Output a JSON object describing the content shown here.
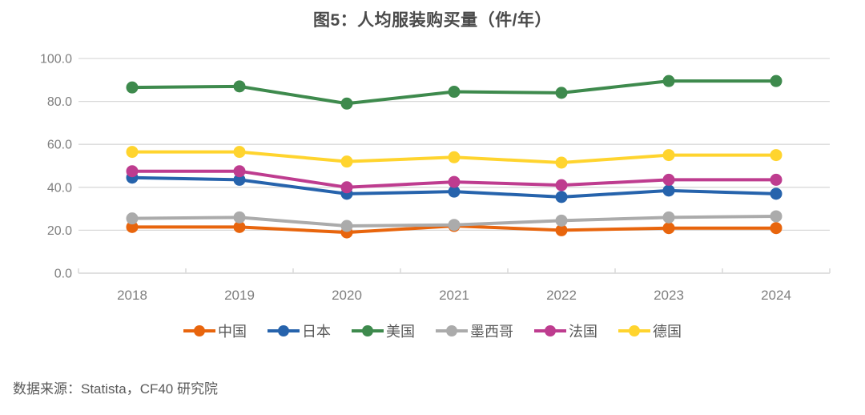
{
  "title": "图5：人均服装购买量（件/年）",
  "source": "数据来源：Statista，CF40 研究院",
  "chart_data": {
    "type": "line",
    "title": "图5：人均服装购买量（件/年）",
    "categories": [
      "2018",
      "2019",
      "2020",
      "2021",
      "2022",
      "2023",
      "2024"
    ],
    "series": [
      {
        "name": "中国",
        "color": "#E8650D",
        "values": [
          21.5,
          21.5,
          19.0,
          22.0,
          20.0,
          21.0,
          21.0
        ]
      },
      {
        "name": "日本",
        "color": "#2663AC",
        "values": [
          44.5,
          43.5,
          37.0,
          38.0,
          35.5,
          38.5,
          37.0
        ]
      },
      {
        "name": "美国",
        "color": "#3E8A4D",
        "values": [
          86.5,
          87.0,
          79.0,
          84.5,
          84.0,
          89.5,
          89.5
        ]
      },
      {
        "name": "墨西哥",
        "color": "#ABABAB",
        "values": [
          25.5,
          26.0,
          22.0,
          22.5,
          24.5,
          26.0,
          26.5
        ]
      },
      {
        "name": "法国",
        "color": "#BE3C8F",
        "values": [
          47.5,
          47.5,
          40.0,
          42.5,
          41.0,
          43.5,
          43.5
        ]
      },
      {
        "name": "德国",
        "color": "#FFD42E",
        "values": [
          56.5,
          56.5,
          52.0,
          54.0,
          51.5,
          55.0,
          55.0
        ]
      }
    ],
    "xlabel": "",
    "ylabel": "",
    "ylim": [
      0,
      100
    ],
    "ytick_step": 20,
    "ytick_labels": [
      "0.0",
      "20.0",
      "40.0",
      "60.0",
      "80.0",
      "100.0"
    ],
    "grid": "horizontal",
    "legend_position": "bottom",
    "colors": {
      "grid_line": "#D9D9D9",
      "axis_line": "#D9D9D9",
      "tick_label": "#7F7F7F",
      "legend_text": "#595959",
      "title_text": "#4a4a4a",
      "background": "#FFFFFF"
    }
  }
}
